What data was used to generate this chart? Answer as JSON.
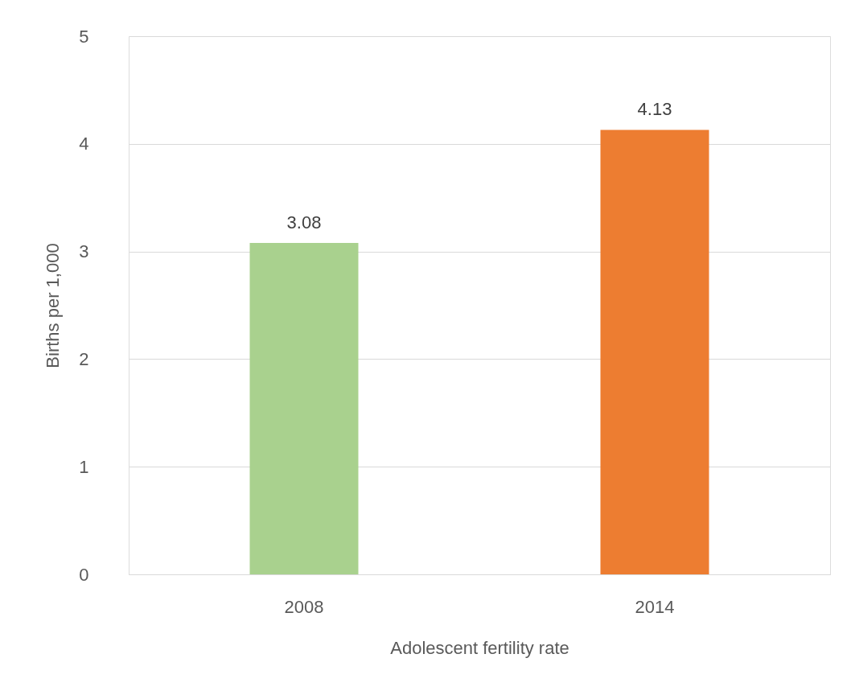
{
  "chart_data": {
    "type": "bar",
    "categories": [
      "2008",
      "2014"
    ],
    "values": [
      3.08,
      4.13
    ],
    "colors": [
      "#a9d18e",
      "#ed7d31"
    ],
    "xlabel": "Adolescent fertility rate",
    "ylabel": "Births per 1,000",
    "ylim": [
      0,
      5
    ],
    "yticks": [
      0,
      1,
      2,
      3,
      4,
      5
    ],
    "grid": "y",
    "data_labels": true
  }
}
